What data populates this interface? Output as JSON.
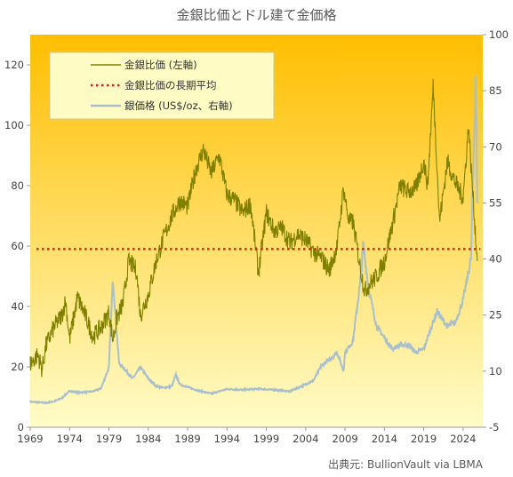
{
  "title": "金銀比価とドル建て金価格",
  "source": "出典元: BullionVault via LBMA",
  "colors": {
    "ratio_line": "#808000",
    "average_line": "#dd1c1c",
    "silver_line": "#a9bfcc",
    "bg_top": "#ffbe00",
    "bg_bottom": "#fffcc8",
    "legend_bg": "#fffbc5",
    "legend_border": "#c9c9a0"
  },
  "chart_data": {
    "type": "line",
    "title": "金銀比価とドル建て金価格",
    "xlabel": "",
    "ylabel": "",
    "x_tick_labels": [
      "1969",
      "1974",
      "1979",
      "1984",
      "1989",
      "1994",
      "1999",
      "2004",
      "2009",
      "2014",
      "2019",
      "2024"
    ],
    "y_left": {
      "range": [
        0,
        130
      ],
      "ticks": [
        "0",
        "20",
        "40",
        "60",
        "80",
        "100",
        "120"
      ]
    },
    "y_right": {
      "range": [
        -5,
        100
      ],
      "ticks": [
        "-5",
        "10",
        "25",
        "40",
        "55",
        "70",
        "85",
        "100"
      ]
    },
    "grid": false,
    "legend": {
      "placement": "top-left",
      "entries": [
        "金銀比価 (左軸)",
        "金銀比価の長期平均",
        "銀価格 (US$/oz、右軸)"
      ]
    },
    "series": [
      {
        "name": "金銀比価 (左軸)",
        "axis": "left",
        "x": [
          1969,
          1970,
          1970.5,
          1971,
          1972,
          1973,
          1973.5,
          1974,
          1975,
          1976,
          1977,
          1978,
          1979,
          1979.5,
          1980,
          1980.8,
          1981.5,
          1982.5,
          1983,
          1984,
          1985,
          1986,
          1987,
          1988,
          1989,
          1990,
          1991,
          1992,
          1993,
          1994,
          1995,
          1996,
          1997,
          1998,
          1999,
          2000,
          2001,
          2002,
          2003,
          2004,
          2005,
          2006,
          2007,
          2008,
          2008.8,
          2009.5,
          2010,
          2011,
          2011.5,
          2012,
          2013,
          2014,
          2015,
          2016,
          2017,
          2018,
          2019,
          2019.5,
          2020.2,
          2020.7,
          2021,
          2022,
          2023,
          2024,
          2024.7,
          2025,
          2025.8
        ],
        "y": [
          21,
          24,
          19,
          27,
          33,
          37,
          42,
          29,
          43,
          37,
          30,
          33,
          38,
          29,
          36,
          41,
          55,
          52,
          37,
          44,
          55,
          63,
          70,
          75,
          73,
          85,
          92,
          84,
          90,
          77,
          75,
          71,
          74,
          51,
          71,
          65,
          66,
          61,
          64,
          62,
          58,
          56,
          52,
          60,
          79,
          68,
          68,
          52,
          45,
          47,
          50,
          55,
          67,
          80,
          78,
          79,
          88,
          80,
          113,
          86,
          68,
          88,
          81,
          76,
          100,
          87,
          55
        ]
      },
      {
        "name": "金銀比価の長期平均",
        "axis": "left",
        "constant": 59
      },
      {
        "name": "銀価格 (US$/oz、右軸)",
        "axis": "right",
        "x": [
          1969,
          1970,
          1971,
          1972,
          1973,
          1974,
          1975,
          1976,
          1977,
          1978,
          1979,
          1979.5,
          1980,
          1980.3,
          1981,
          1982,
          1983,
          1984,
          1985,
          1986,
          1987,
          1987.5,
          1988,
          1990,
          1992,
          1994,
          1996,
          1998,
          2000,
          2002,
          2004,
          2005,
          2006,
          2007,
          2008,
          2008.8,
          2009,
          2010,
          2011,
          2011.3,
          2012,
          2013,
          2014,
          2015,
          2016,
          2017,
          2018,
          2019,
          2020,
          2020.7,
          2021,
          2022,
          2023,
          2024,
          2025,
          2025.6,
          2025.8
        ],
        "y": [
          1.8,
          1.7,
          1.5,
          1.9,
          2.8,
          4.7,
          4.3,
          4.4,
          4.6,
          5.4,
          11,
          35,
          20,
          12,
          10.5,
          8,
          11,
          8,
          6,
          5.5,
          6,
          9,
          6.5,
          5,
          4,
          5.2,
          5,
          5.3,
          5,
          4.6,
          6.5,
          7.5,
          11.5,
          13,
          15,
          10,
          15,
          18,
          35,
          44,
          32,
          22,
          19,
          16,
          17,
          17,
          15,
          16,
          22,
          26,
          25,
          22,
          23,
          29,
          40,
          90,
          55
        ]
      }
    ]
  }
}
